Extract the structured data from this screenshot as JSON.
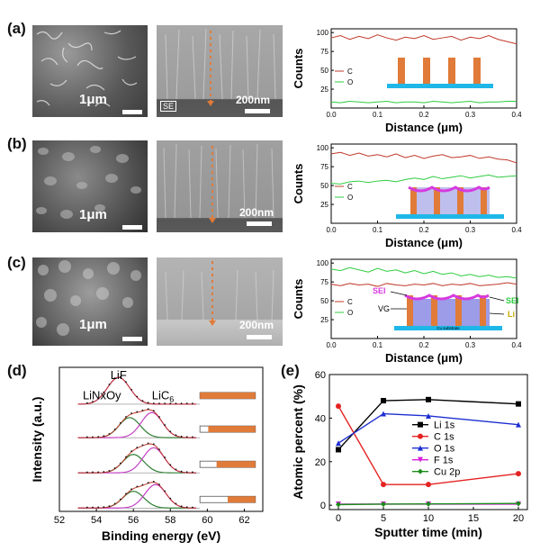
{
  "panels": {
    "a": {
      "label": "(a)",
      "sem_top_scale": "1μm",
      "sem_side_scale": "200nm",
      "sem_side_tag": "SE"
    },
    "b": {
      "label": "(b)",
      "sem_top_scale": "1μm",
      "sem_side_scale": "200nm"
    },
    "c": {
      "label": "(c)",
      "sem_top_scale": "1μm",
      "sem_side_scale": "200nm"
    },
    "d": {
      "label": "(d)"
    },
    "e": {
      "label": "(e)"
    }
  },
  "colors": {
    "C": "#c0392b",
    "O": "#2ecc40",
    "pillar": "#e07b39",
    "substrate": "#1fb7e8",
    "sei": "#d63adf",
    "fit": "#2e7d32"
  },
  "chart_data": [
    {
      "type": "line",
      "id": "a",
      "xlabel": "Distance (μm)",
      "ylabel": "Counts",
      "xlim": [
        0,
        0.4
      ],
      "ylim": [
        0,
        105
      ],
      "xticks": [
        "0.0",
        "0.1",
        "0.2",
        "0.3",
        "0.4"
      ],
      "yticks": [
        "100",
        "75",
        "50",
        "25"
      ],
      "x": [
        0,
        0.02,
        0.04,
        0.06,
        0.08,
        0.1,
        0.12,
        0.14,
        0.16,
        0.18,
        0.2,
        0.22,
        0.24,
        0.26,
        0.28,
        0.3,
        0.32,
        0.34,
        0.36,
        0.38,
        0.4
      ],
      "series": [
        {
          "name": "C",
          "values": [
            93,
            96,
            91,
            95,
            92,
            97,
            93,
            90,
            94,
            92,
            96,
            91,
            93,
            95,
            90,
            94,
            92,
            96,
            91,
            88,
            85
          ]
        },
        {
          "name": "O",
          "values": [
            8,
            7,
            9,
            8,
            7,
            8,
            9,
            7,
            8,
            8,
            7,
            9,
            8,
            7,
            8,
            9,
            7,
            8,
            8,
            9,
            9
          ]
        }
      ],
      "inset_labels": []
    },
    {
      "type": "line",
      "id": "b",
      "xlabel": "Distance (μm)",
      "ylabel": "Counts",
      "xlim": [
        0,
        0.4
      ],
      "ylim": [
        0,
        105
      ],
      "xticks": [
        "0.0",
        "0.1",
        "0.2",
        "0.3",
        "0.4"
      ],
      "yticks": [
        "100",
        "75",
        "50",
        "25"
      ],
      "x": [
        0,
        0.02,
        0.04,
        0.06,
        0.08,
        0.1,
        0.12,
        0.14,
        0.16,
        0.18,
        0.2,
        0.22,
        0.24,
        0.26,
        0.28,
        0.3,
        0.32,
        0.34,
        0.36,
        0.38,
        0.4
      ],
      "series": [
        {
          "name": "C",
          "values": [
            92,
            94,
            90,
            93,
            89,
            91,
            88,
            92,
            87,
            90,
            86,
            89,
            91,
            87,
            88,
            90,
            86,
            88,
            85,
            84,
            80
          ]
        },
        {
          "name": "O",
          "values": [
            53,
            52,
            55,
            56,
            54,
            56,
            57,
            55,
            58,
            60,
            58,
            62,
            59,
            61,
            63,
            60,
            62,
            64,
            61,
            62,
            63
          ]
        }
      ],
      "inset_labels": []
    },
    {
      "type": "line",
      "id": "c",
      "xlabel": "Distance (μm)",
      "ylabel": "Counts",
      "xlim": [
        0,
        0.4
      ],
      "ylim": [
        0,
        105
      ],
      "xticks": [
        "0.0",
        "0.1",
        "0.2",
        "0.3",
        "0.4"
      ],
      "yticks": [
        "100",
        "75",
        "50",
        "25"
      ],
      "x": [
        0,
        0.02,
        0.04,
        0.06,
        0.08,
        0.1,
        0.12,
        0.14,
        0.16,
        0.18,
        0.2,
        0.22,
        0.24,
        0.26,
        0.28,
        0.3,
        0.32,
        0.34,
        0.36,
        0.38,
        0.4
      ],
      "series": [
        {
          "name": "C",
          "values": [
            72,
            70,
            73,
            71,
            72,
            69,
            73,
            71,
            70,
            72,
            71,
            73,
            70,
            72,
            71,
            73,
            70,
            71,
            72,
            74,
            72
          ]
        },
        {
          "name": "O",
          "values": [
            92,
            90,
            94,
            91,
            88,
            93,
            89,
            91,
            87,
            90,
            86,
            89,
            85,
            87,
            83,
            85,
            82,
            84,
            81,
            82,
            80
          ]
        }
      ],
      "inset_labels": [
        "SEI",
        "VG",
        "SEI",
        "Li",
        "Cu substrate"
      ]
    },
    {
      "type": "line",
      "id": "d",
      "xlabel": "Binding energy (eV)",
      "ylabel": "Intensity (a.u.)",
      "xlim": [
        52,
        63
      ],
      "ylim": [
        0,
        4.3
      ],
      "xticks": [
        "52",
        "54",
        "56",
        "58",
        "60",
        "62"
      ],
      "peak_labels": [
        "LiF",
        "LiNxOy",
        "LiC"
      ],
      "peak_label_sub": "6",
      "spectra": [
        {
          "offset": 3.1,
          "components": [
            {
              "center": 55.2,
              "width": 0.9,
              "height": 0.8,
              "label": "LiF"
            }
          ]
        },
        {
          "offset": 2.1,
          "components": [
            {
              "center": 55.8,
              "width": 0.85,
              "height": 0.6,
              "label": "LiNxOy"
            },
            {
              "center": 57.0,
              "width": 0.85,
              "height": 0.75,
              "label": "LiC6"
            }
          ]
        },
        {
          "offset": 1.05,
          "components": [
            {
              "center": 56.0,
              "width": 0.85,
              "height": 0.55,
              "label": "LiNxOy"
            },
            {
              "center": 57.1,
              "width": 0.85,
              "height": 0.75,
              "label": "LiC6"
            }
          ]
        },
        {
          "offset": 0.0,
          "components": [
            {
              "center": 56.0,
              "width": 0.85,
              "height": 0.5,
              "label": "LiNxOy"
            },
            {
              "center": 57.2,
              "width": 0.85,
              "height": 0.7,
              "label": "LiC6"
            }
          ]
        }
      ],
      "depth_bars": [
        1.0,
        0.85,
        0.7,
        0.5
      ]
    },
    {
      "type": "line",
      "id": "e",
      "xlabel": "Sputter time (min)",
      "ylabel": "Atomic percent (%)",
      "xlim": [
        -1,
        21
      ],
      "ylim": [
        -2,
        60
      ],
      "xticks": [
        "0",
        "5",
        "10",
        "15",
        "20"
      ],
      "yticks": [
        "0",
        "20",
        "40",
        "60"
      ],
      "x": [
        0,
        5,
        10,
        20
      ],
      "series": [
        {
          "name": "Li 1s",
          "color": "#000000",
          "marker": "square",
          "values": [
            25.5,
            48,
            48.5,
            46.5
          ]
        },
        {
          "name": "C 1s",
          "color": "#e52222",
          "marker": "circle",
          "values": [
            45.5,
            9.5,
            9.5,
            14.5
          ]
        },
        {
          "name": "O 1s",
          "color": "#1e2fd0",
          "marker": "triangle",
          "values": [
            28.5,
            42,
            41,
            37
          ]
        },
        {
          "name": "F 1s",
          "color": "#d81ed8",
          "marker": "triangle-down",
          "values": [
            0.5,
            0.5,
            0.5,
            0.5
          ]
        },
        {
          "name": "Cu 2p",
          "color": "#1a8c1a",
          "marker": "diamond",
          "values": [
            0.3,
            0.5,
            0.6,
            0.8
          ]
        }
      ]
    }
  ]
}
